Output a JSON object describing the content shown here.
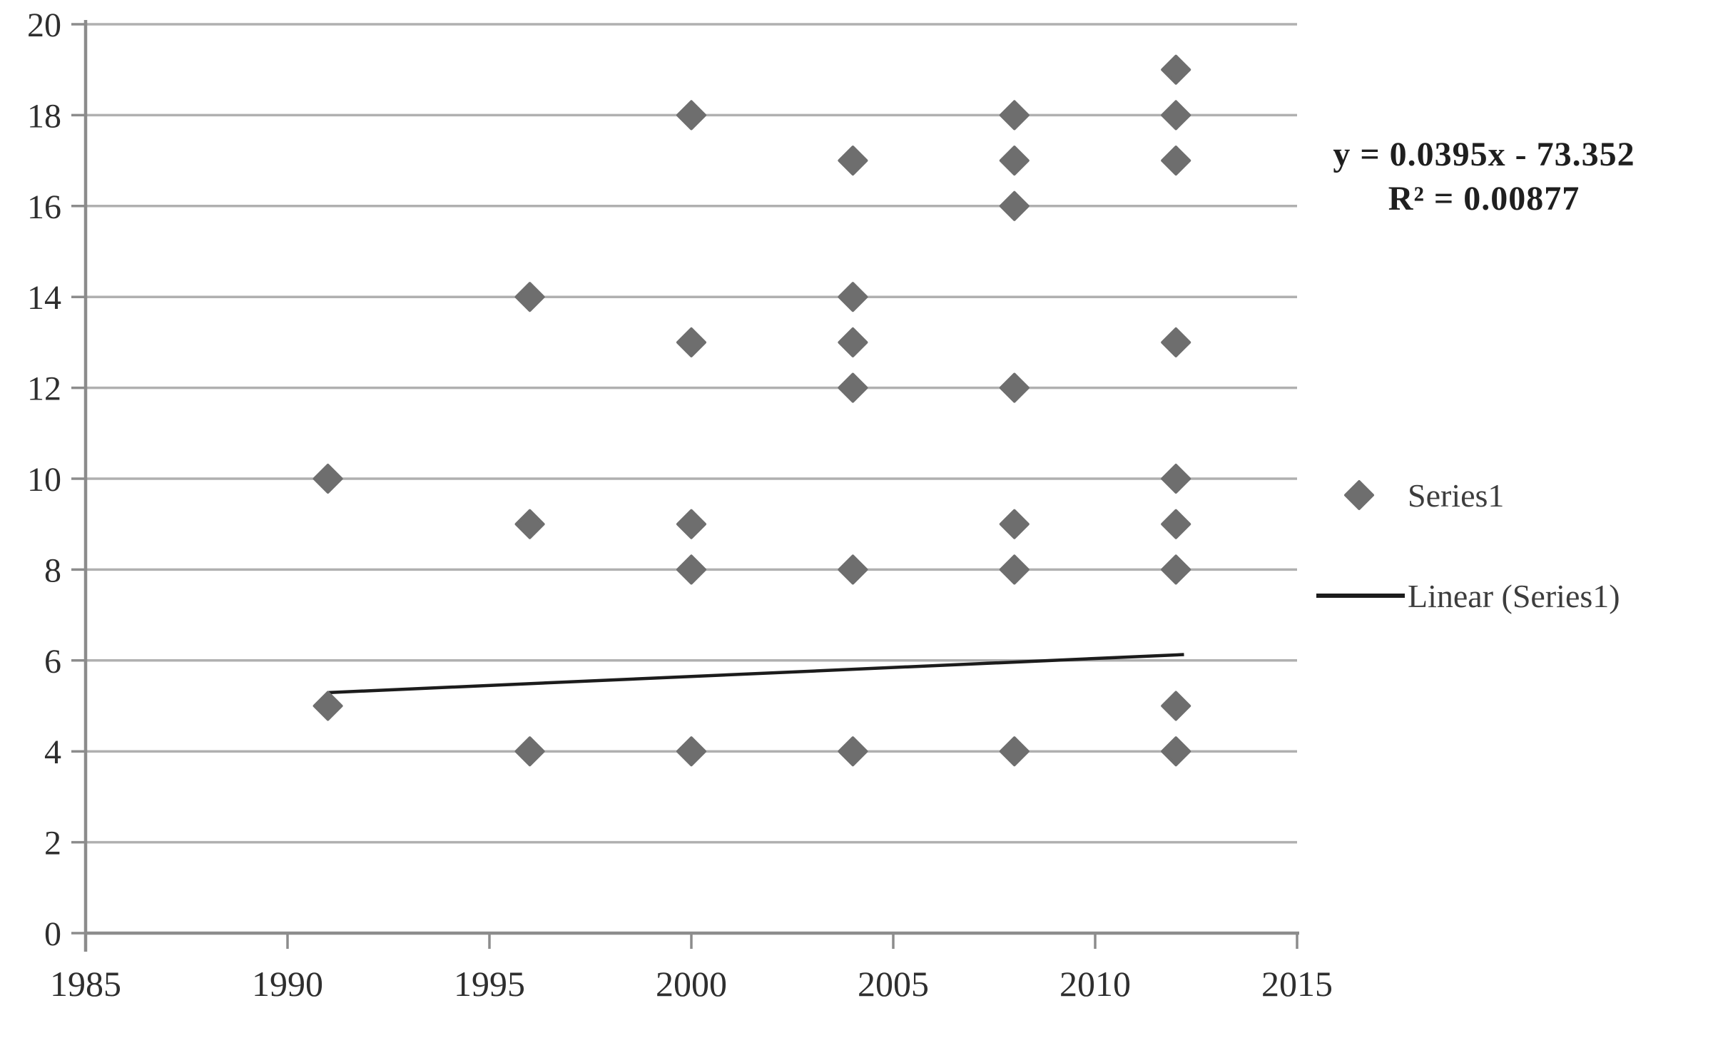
{
  "chart_data": {
    "type": "scatter",
    "title": "",
    "xlabel": "",
    "ylabel": "",
    "xlim": [
      1985,
      2015
    ],
    "ylim": [
      0,
      20
    ],
    "x_ticks": [
      1985,
      1990,
      1995,
      2000,
      2005,
      2010,
      2015
    ],
    "y_ticks": [
      0,
      2,
      4,
      6,
      8,
      10,
      12,
      14,
      16,
      18,
      20
    ],
    "grid": "horizontal",
    "legend_position": "right",
    "points": [
      {
        "x": 1991,
        "y": 10
      },
      {
        "x": 1991,
        "y": 5
      },
      {
        "x": 1996,
        "y": 14
      },
      {
        "x": 1996,
        "y": 9
      },
      {
        "x": 1996,
        "y": 4
      },
      {
        "x": 2000,
        "y": 18
      },
      {
        "x": 2000,
        "y": 13
      },
      {
        "x": 2000,
        "y": 9
      },
      {
        "x": 2000,
        "y": 8
      },
      {
        "x": 2000,
        "y": 4
      },
      {
        "x": 2004,
        "y": 17
      },
      {
        "x": 2004,
        "y": 14
      },
      {
        "x": 2004,
        "y": 13
      },
      {
        "x": 2004,
        "y": 12
      },
      {
        "x": 2004,
        "y": 8
      },
      {
        "x": 2004,
        "y": 4
      },
      {
        "x": 2008,
        "y": 18
      },
      {
        "x": 2008,
        "y": 17
      },
      {
        "x": 2008,
        "y": 16
      },
      {
        "x": 2008,
        "y": 12
      },
      {
        "x": 2008,
        "y": 9
      },
      {
        "x": 2008,
        "y": 8
      },
      {
        "x": 2008,
        "y": 4
      },
      {
        "x": 2012,
        "y": 19
      },
      {
        "x": 2012,
        "y": 18
      },
      {
        "x": 2012,
        "y": 17
      },
      {
        "x": 2012,
        "y": 13
      },
      {
        "x": 2012,
        "y": 10
      },
      {
        "x": 2012,
        "y": 9
      },
      {
        "x": 2012,
        "y": 8
      },
      {
        "x": 2012,
        "y": 5
      },
      {
        "x": 2012,
        "y": 4
      }
    ],
    "trendline": {
      "slope": 0.0395,
      "intercept": -73.352,
      "x_start": 1991,
      "x_end": 2012.2,
      "equation_line1": "y = 0.0395x - 73.352",
      "equation_line2": "R² = 0.00877"
    },
    "legend": [
      {
        "label": "Series1",
        "marker": "diamond"
      },
      {
        "label": "Linear (Series1)",
        "marker": "line"
      }
    ],
    "colors": {
      "background": "#ffffff",
      "marker": "#6e6e6e",
      "trendline": "#1c1c1c",
      "gridline": "#b0b0b0",
      "axis": "#8c8c8c",
      "tick_label": "#2e2e2e",
      "equation_text": "#1f1f1f",
      "legend_text": "#3d3d3d"
    }
  }
}
